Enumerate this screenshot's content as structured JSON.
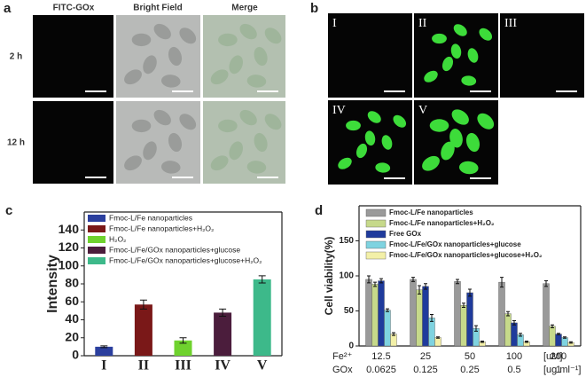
{
  "panels": {
    "a": {
      "label": "a",
      "columns": [
        "FITC-GOx",
        "Bright Field",
        "Merge"
      ],
      "rows": [
        "2 h",
        "12 h"
      ]
    },
    "b": {
      "label": "b",
      "images": [
        "I",
        "II",
        "III",
        "IV",
        "V"
      ]
    }
  },
  "chart_data": [
    {
      "type": "bar",
      "label": "c",
      "ylabel": "Intensity",
      "categories": [
        "I",
        "II",
        "III",
        "IV",
        "V"
      ],
      "values": [
        10,
        57,
        17,
        48,
        85
      ],
      "errors": [
        1,
        5,
        3,
        4,
        4
      ],
      "colors": [
        "#2b3f9e",
        "#7a1818",
        "#6fd22e",
        "#4b1d3c",
        "#3db98a"
      ],
      "legend": [
        "Fmoc-L/Fe nanoparticles",
        "Fmoc-L/Fe nanoparticles+H₂O₂",
        "H₂O₂",
        "Fmoc-L/Fe/GOx nanoparticles+glucose",
        "Fmoc-L/Fe/GOx nanoparticles+glucose+H₂O₂"
      ],
      "ylim": [
        0,
        160
      ],
      "yticks": [
        0,
        20,
        40,
        60,
        80,
        100,
        120,
        140
      ]
    },
    {
      "type": "grouped_bar",
      "label": "d",
      "ylabel": "Cell viability(%)",
      "row_labels": [
        "Fe²⁺",
        "GOx"
      ],
      "units": [
        "[uM]",
        "[ug ml⁻¹]"
      ],
      "categories": [
        "12.5",
        "25",
        "50",
        "100",
        "200"
      ],
      "categories2": [
        "0.0625",
        "0.125",
        "0.25",
        "0.5",
        "1"
      ],
      "series": [
        {
          "name": "Fmoc-L/Fe nanoparticles",
          "color": "#9a9a9a",
          "values": [
            95,
            95,
            92,
            91,
            89
          ],
          "errors": [
            5,
            3,
            3,
            7,
            4
          ]
        },
        {
          "name": "Fmoc-L/Fe nanoparticles+H₂O₂",
          "color": "#c6d98a",
          "values": [
            88,
            80,
            58,
            46,
            28
          ],
          "errors": [
            3,
            6,
            3,
            3,
            2
          ]
        },
        {
          "name": "Free GOx",
          "color": "#1f3b9c",
          "values": [
            93,
            85,
            76,
            33,
            17
          ],
          "errors": [
            3,
            4,
            5,
            3,
            1
          ]
        },
        {
          "name": "Fmoc-L/Fe/GOx nanoparticles+glucose",
          "color": "#7fd3e0",
          "values": [
            51,
            40,
            25,
            16,
            12
          ],
          "errors": [
            2,
            5,
            4,
            2,
            1
          ]
        },
        {
          "name": "Fmoc-L/Fe/GOx nanoparticles+glucose+H₂O₂",
          "color": "#f3f0a8",
          "values": [
            17,
            12,
            6,
            6,
            5
          ],
          "errors": [
            2,
            1,
            1,
            1,
            1
          ]
        }
      ],
      "ylim": [
        0,
        200
      ],
      "yticks": [
        0,
        50,
        100,
        150
      ]
    }
  ]
}
